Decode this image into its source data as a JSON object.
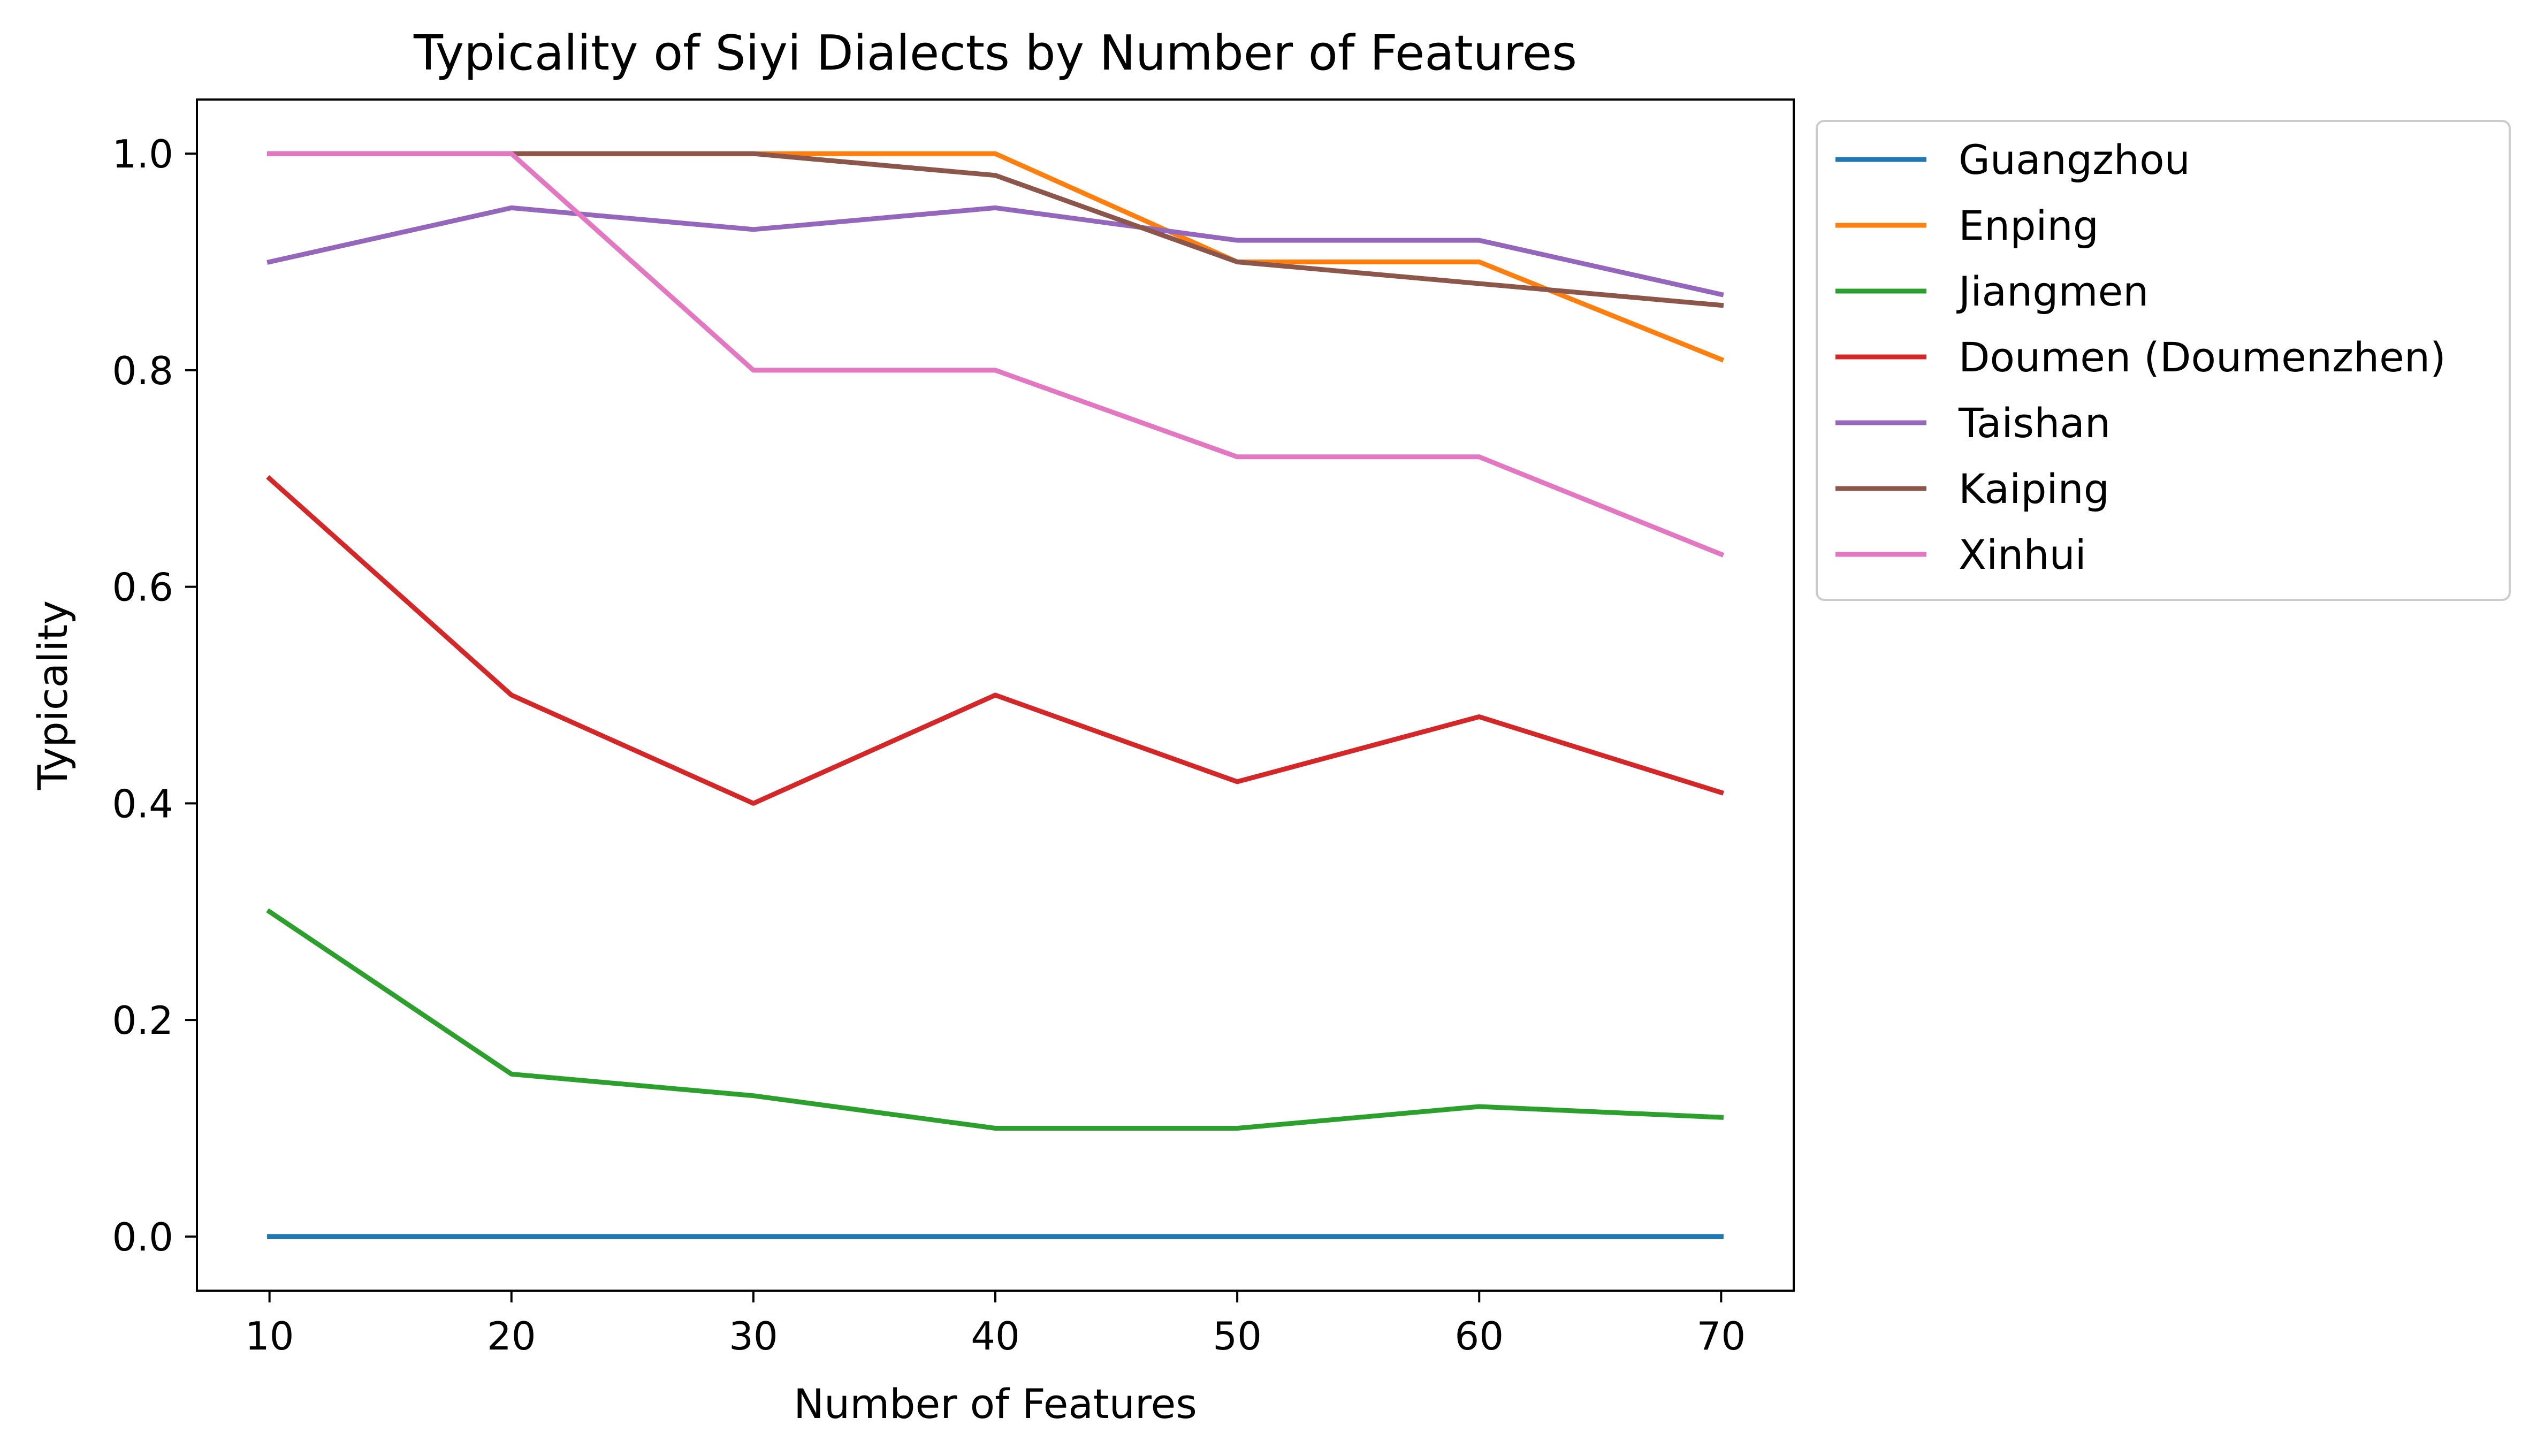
{
  "chart_data": {
    "type": "line",
    "title": "Typicality of Siyi Dialects by Number of Features",
    "xlabel": "Number of Features",
    "ylabel": "Typicality",
    "x": [
      10,
      20,
      30,
      40,
      50,
      60,
      70
    ],
    "x_ticks": [
      "10",
      "20",
      "30",
      "40",
      "50",
      "60",
      "70"
    ],
    "y_ticks": [
      "0.0",
      "0.2",
      "0.4",
      "0.6",
      "0.8",
      "1.0"
    ],
    "xlim": [
      7,
      73
    ],
    "ylim": [
      -0.05,
      1.05
    ],
    "grid": false,
    "legend_position": "outside-upper-right",
    "series": [
      {
        "name": "Guangzhou",
        "color": "#1f77b4",
        "values": [
          0.0,
          0.0,
          0.0,
          0.0,
          0.0,
          0.0,
          0.0
        ]
      },
      {
        "name": "Enping",
        "color": "#ff7f0e",
        "values": [
          1.0,
          1.0,
          1.0,
          1.0,
          0.9,
          0.9,
          0.81
        ]
      },
      {
        "name": "Jiangmen",
        "color": "#2ca02c",
        "values": [
          0.3,
          0.15,
          0.13,
          0.1,
          0.1,
          0.12,
          0.11
        ]
      },
      {
        "name": "Doumen (Doumenzhen)",
        "color": "#d62728",
        "values": [
          0.7,
          0.5,
          0.4,
          0.5,
          0.42,
          0.48,
          0.41
        ]
      },
      {
        "name": "Taishan",
        "color": "#9467bd",
        "values": [
          0.9,
          0.95,
          0.93,
          0.95,
          0.92,
          0.92,
          0.87
        ]
      },
      {
        "name": "Kaiping",
        "color": "#8c564b",
        "values": [
          1.0,
          1.0,
          1.0,
          0.98,
          0.9,
          0.88,
          0.86
        ]
      },
      {
        "name": "Xinhui",
        "color": "#e377c2",
        "values": [
          1.0,
          1.0,
          0.8,
          0.8,
          0.72,
          0.72,
          0.63
        ]
      }
    ]
  }
}
